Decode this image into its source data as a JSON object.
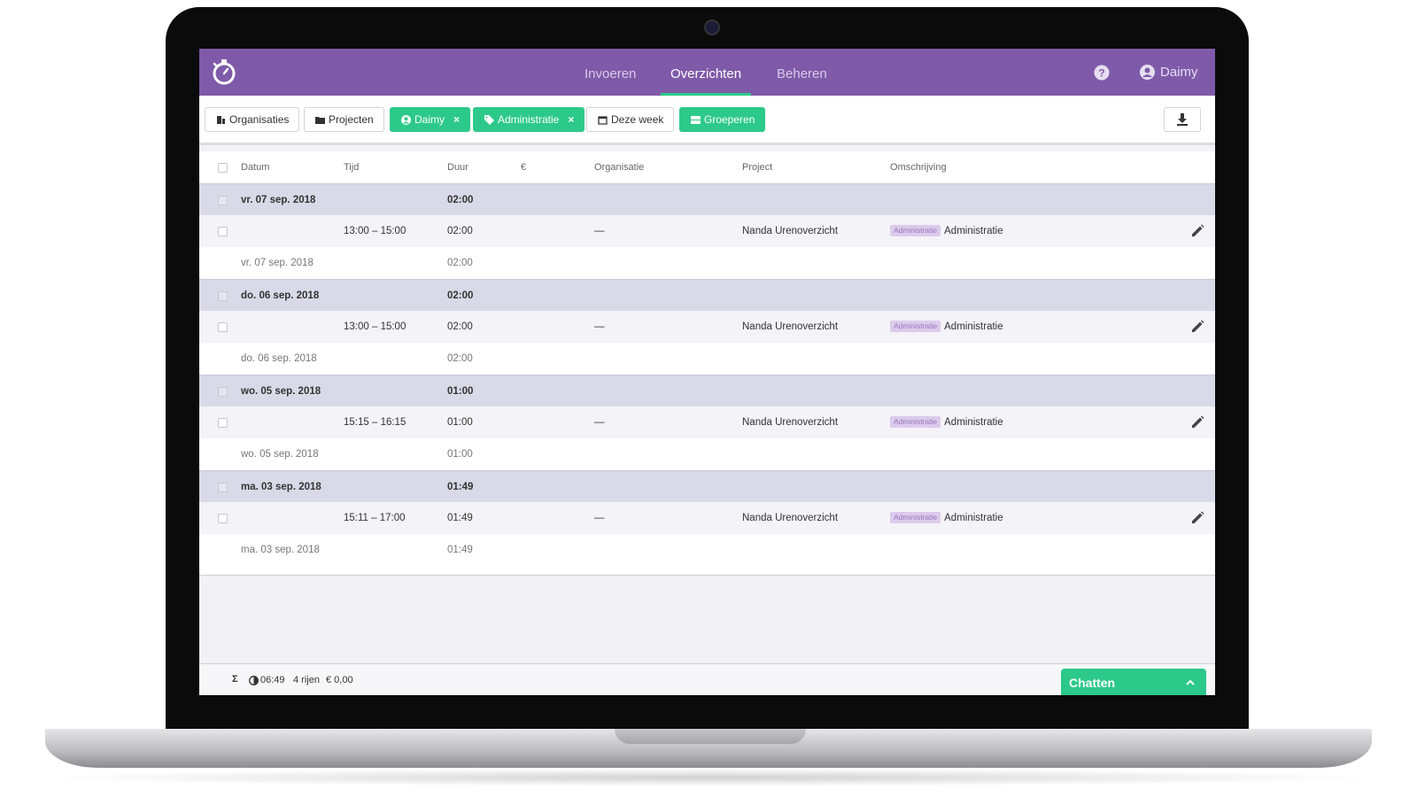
{
  "nav": {
    "items": [
      "Invoeren",
      "Overzichten",
      "Beheren"
    ],
    "active": 1,
    "user": "Daimy"
  },
  "filters": [
    {
      "label": "Organisaties",
      "icon": "building",
      "active": false
    },
    {
      "label": "Projecten",
      "icon": "folder",
      "active": false
    },
    {
      "label": "Daimy",
      "icon": "user",
      "active": true
    },
    {
      "label": "Administratie",
      "icon": "tag",
      "active": true
    },
    {
      "label": "Deze week",
      "icon": "calendar",
      "active": false
    },
    {
      "label": "Groeperen",
      "icon": "group",
      "active": true
    }
  ],
  "table": {
    "columns": [
      "Datum",
      "Tijd",
      "Duur",
      "€",
      "Organisatie",
      "Project",
      "Omschrijving"
    ],
    "groups": [
      {
        "date": "vr. 07 sep. 2018",
        "total": "02:00",
        "entries": [
          {
            "time": "13:00 – 15:00",
            "duration": "02:00",
            "organisation": "—",
            "project": "Nanda Urenoverzicht",
            "tag": "Administratie",
            "description": "Administratie"
          }
        ]
      },
      {
        "date": "do. 06 sep. 2018",
        "total": "02:00",
        "entries": [
          {
            "time": "13:00 – 15:00",
            "duration": "02:00",
            "organisation": "—",
            "project": "Nanda Urenoverzicht",
            "tag": "Administratie",
            "description": "Administratie"
          }
        ]
      },
      {
        "date": "wo. 05 sep. 2018",
        "total": "01:00",
        "entries": [
          {
            "time": "15:15 – 16:15",
            "duration": "01:00",
            "organisation": "—",
            "project": "Nanda Urenoverzicht",
            "tag": "Administratie",
            "description": "Administratie"
          }
        ]
      },
      {
        "date": "ma. 03 sep. 2018",
        "total": "01:49",
        "entries": [
          {
            "time": "15:11 – 17:00",
            "duration": "01:49",
            "organisation": "—",
            "project": "Nanda Urenoverzicht",
            "tag": "Administratie",
            "description": "Administratie"
          }
        ]
      }
    ]
  },
  "footer": {
    "sigma": "Σ",
    "total": "06:49",
    "rows": "4 rijen",
    "amount": "€ 0,00"
  },
  "chat": "Chatten"
}
